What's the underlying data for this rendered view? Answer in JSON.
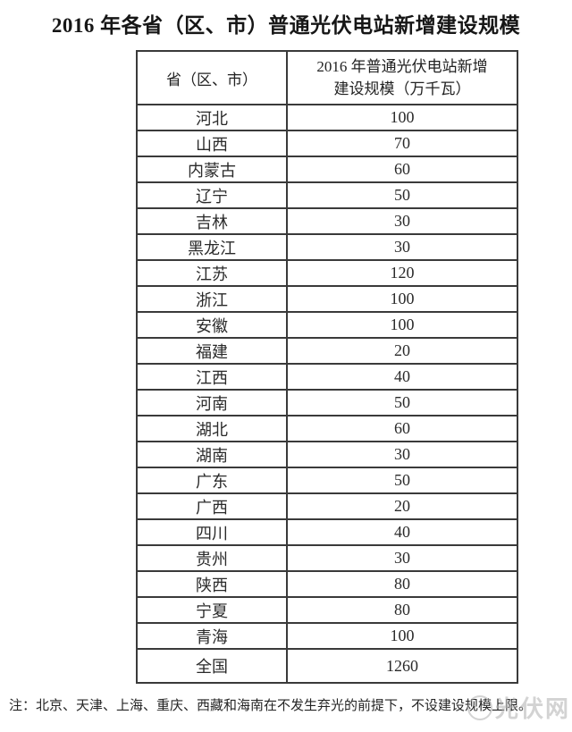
{
  "title": "2016 年各省（区、市）普通光伏电站新增建设规模",
  "table": {
    "header": {
      "col1": "省（区、市）",
      "col2_line1": "2016 年普通光伏电站新增",
      "col2_line2": "建设规模（万千瓦）"
    },
    "rows": [
      {
        "province": "河北",
        "value": "100"
      },
      {
        "province": "山西",
        "value": "70"
      },
      {
        "province": "内蒙古",
        "value": "60"
      },
      {
        "province": "辽宁",
        "value": "50"
      },
      {
        "province": "吉林",
        "value": "30"
      },
      {
        "province": "黑龙江",
        "value": "30"
      },
      {
        "province": "江苏",
        "value": "120"
      },
      {
        "province": "浙江",
        "value": "100"
      },
      {
        "province": "安徽",
        "value": "100"
      },
      {
        "province": "福建",
        "value": "20"
      },
      {
        "province": "江西",
        "value": "40"
      },
      {
        "province": "河南",
        "value": "50"
      },
      {
        "province": "湖北",
        "value": "60"
      },
      {
        "province": "湖南",
        "value": "30"
      },
      {
        "province": "广东",
        "value": "50"
      },
      {
        "province": "广西",
        "value": "20"
      },
      {
        "province": "四川",
        "value": "40"
      },
      {
        "province": "贵州",
        "value": "30"
      },
      {
        "province": "陕西",
        "value": "80"
      },
      {
        "province": "宁夏",
        "value": "80"
      },
      {
        "province": "青海",
        "value": "100"
      },
      {
        "province": "全国",
        "value": "1260",
        "is_total": true
      }
    ]
  },
  "note": {
    "label": "注：",
    "text": "北京、天津、上海、重庆、西藏和海南在不发生弃光的前提下，不设建设规模上限。"
  },
  "watermark": {
    "text": "光伏网"
  },
  "colors": {
    "text": "#1f1f1f",
    "border": "#3a3a3a",
    "background": "#ffffff",
    "watermark": "#b0b0b0"
  }
}
